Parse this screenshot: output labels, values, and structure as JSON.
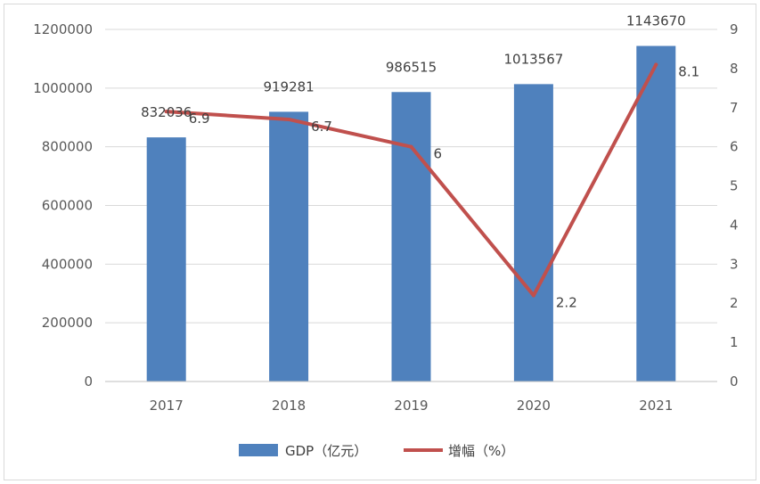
{
  "chart_data": {
    "type": "bar",
    "categories": [
      "2017",
      "2018",
      "2019",
      "2020",
      "2021"
    ],
    "series": [
      {
        "name": "GDP（亿元）",
        "type": "bar",
        "axis": "left",
        "color": "#4f81bd",
        "values": [
          832036,
          919281,
          986515,
          1013567,
          1143670
        ]
      },
      {
        "name": "增幅（%）",
        "type": "line",
        "axis": "right",
        "color": "#c0504d",
        "values": [
          6.9,
          6.7,
          6,
          2.2,
          8.1
        ]
      }
    ],
    "y_left": {
      "min": 0,
      "max": 1200000,
      "ticks": [
        0,
        200000,
        400000,
        600000,
        800000,
        1000000,
        1200000
      ]
    },
    "y_right": {
      "min": 0,
      "max": 9,
      "ticks": [
        0,
        1,
        2,
        3,
        4,
        5,
        6,
        7,
        8,
        9
      ]
    },
    "grid": true,
    "legend": "bottom"
  }
}
